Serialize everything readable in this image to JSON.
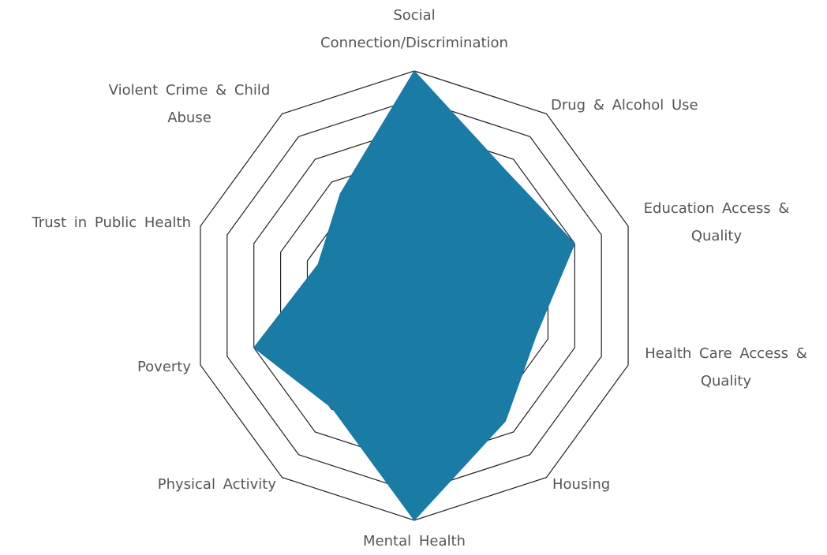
{
  "chart_data": {
    "type": "radar",
    "categories": [
      "Social Connection/Discrimination",
      "Drug & Alcohol Use",
      "Education Access & Quality",
      "Health Care Access & Quality",
      "Housing",
      "Mental Health",
      "Physical Activity",
      "Poverty",
      "Trust in Public Health",
      "Violent Crime & Child Abuse"
    ],
    "values": [
      1.0,
      0.69,
      0.75,
      0.57,
      0.69,
      1.0,
      0.62,
      0.75,
      0.45,
      0.56
    ],
    "color": "#1a7ba5",
    "ylim": [
      0,
      1
    ],
    "yticks": [
      0.5,
      0.625,
      0.75,
      0.875,
      1
    ],
    "grid": true
  }
}
